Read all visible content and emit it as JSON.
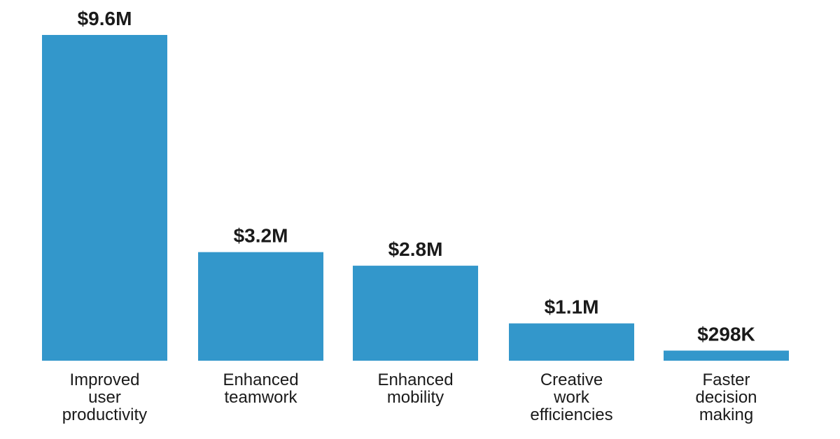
{
  "chart_data": {
    "type": "bar",
    "title": "",
    "xlabel": "",
    "ylabel": "",
    "ylim": [
      0,
      9.6
    ],
    "unit": "USD millions",
    "bar_color": "#3397cb",
    "categories": [
      "Improved user productivity",
      "Enhanced teamwork",
      "Enhanced mobility",
      "Creative work efficiencies",
      "Faster decision making"
    ],
    "category_lines": [
      [
        "Improved",
        "user",
        "productivity"
      ],
      [
        "Enhanced",
        "teamwork"
      ],
      [
        "Enhanced",
        "mobility"
      ],
      [
        "Creative",
        "work",
        "efficiencies"
      ],
      [
        "Faster",
        "decision",
        "making"
      ]
    ],
    "values": [
      9.6,
      3.2,
      2.8,
      1.1,
      0.298
    ],
    "value_labels": [
      "$9.6M",
      "$3.2M",
      "$2.8M",
      "$1.1M",
      "$298K"
    ]
  }
}
